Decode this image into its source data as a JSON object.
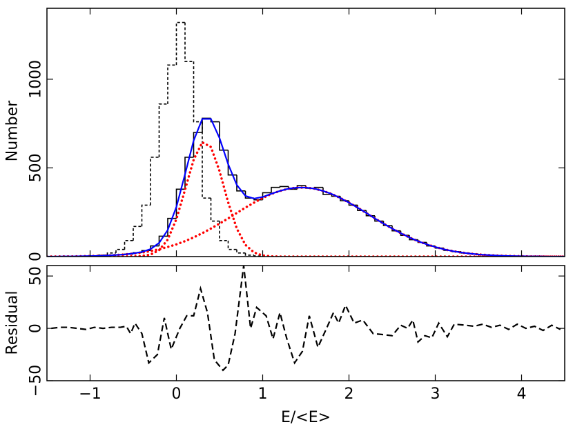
{
  "chart_data": [
    {
      "type": "histogram",
      "ylabel": "Number",
      "xlim": [
        -1.5,
        4.5
      ],
      "ylim": [
        0,
        1400
      ],
      "yticks": [
        {
          "value": 0,
          "label": "0"
        },
        500,
        1000
      ],
      "bins": [
        -1.5,
        -1.4,
        -1.3,
        -1.2,
        -1.1,
        -1.0,
        -0.9,
        -0.8,
        -0.7,
        -0.6,
        -0.5,
        -0.4,
        -0.3,
        -0.2,
        -0.1,
        0,
        0.1,
        0.2,
        0.3,
        0.4,
        0.5,
        0.6,
        0.7,
        0.8,
        0.9,
        1.0,
        1.1,
        1.2,
        1.3,
        1.4,
        1.5,
        1.6,
        1.7,
        1.8,
        1.9,
        2.0,
        2.1,
        2.2,
        2.3,
        2.4,
        2.5,
        2.6,
        2.7,
        2.8,
        2.9,
        3.0,
        3.1,
        3.2,
        3.3,
        3.4,
        3.5,
        3.6,
        3.7,
        3.8,
        3.9,
        4.0,
        4.1,
        4.2,
        4.3,
        4.4,
        4.5
      ],
      "series": [
        {
          "color": "#000000",
          "dash": false,
          "values": [
            0,
            0,
            1,
            1,
            2,
            3,
            5,
            7,
            10,
            14,
            22,
            34,
            60,
            115,
            215,
            380,
            560,
            700,
            780,
            760,
            600,
            460,
            370,
            330,
            320,
            360,
            390,
            395,
            380,
            400,
            385,
            390,
            350,
            340,
            315,
            290,
            260,
            230,
            200,
            175,
            145,
            120,
            95,
            80,
            60,
            48,
            35,
            28,
            20,
            15,
            10,
            7,
            5,
            3,
            2,
            1,
            1,
            0,
            0,
            0
          ]
        },
        {
          "color": "#000000",
          "dash": true,
          "values": [
            0,
            0,
            0,
            0,
            0,
            2,
            8,
            20,
            40,
            90,
            170,
            290,
            560,
            860,
            1080,
            1320,
            1100,
            760,
            330,
            200,
            90,
            40,
            20,
            8,
            3,
            0,
            0,
            0,
            0,
            0,
            0,
            0,
            0,
            0,
            0,
            0,
            0,
            0,
            0,
            0,
            0,
            0,
            0,
            0,
            0,
            0,
            0,
            0,
            0,
            0,
            0,
            0,
            0,
            0,
            0,
            0,
            0,
            0,
            0,
            0
          ]
        }
      ],
      "lines": {
        "x": [
          -1.5,
          -1.4,
          -1.3,
          -1.2,
          -1.1,
          -1.0,
          -0.9,
          -0.8,
          -0.7,
          -0.6,
          -0.5,
          -0.4,
          -0.3,
          -0.2,
          -0.1,
          0,
          0.1,
          0.2,
          0.3,
          0.4,
          0.5,
          0.6,
          0.7,
          0.8,
          0.9,
          1.0,
          1.1,
          1.2,
          1.3,
          1.4,
          1.5,
          1.6,
          1.7,
          1.8,
          1.9,
          2.0,
          2.1,
          2.2,
          2.3,
          2.4,
          2.5,
          2.6,
          2.7,
          2.8,
          2.9,
          3.0,
          3.1,
          3.2,
          3.3,
          3.4,
          3.5,
          3.6,
          3.7,
          3.8,
          3.9,
          4.0,
          4.1,
          4.2,
          4.3,
          4.4,
          4.5
        ],
        "series": [
          {
            "color": "#ff0000",
            "style": "dotted",
            "values": [
              0,
              0,
              0,
              0,
              0,
              0,
              0,
              0,
              0,
              0,
              1,
              3,
              11,
              36,
              96,
              211,
              377,
              546,
              644,
              618,
              482,
              306,
              158,
              66,
              23,
              6,
              1,
              0,
              0,
              0,
              0,
              0,
              0,
              0,
              0,
              0,
              0,
              0,
              0,
              0,
              0,
              0,
              0,
              0,
              0,
              0,
              0,
              0,
              0,
              0,
              0,
              0,
              0,
              0,
              0,
              0,
              0,
              0,
              0,
              0,
              0
            ]
          },
          {
            "color": "#ff0000",
            "style": "dotted",
            "values": [
              0,
              0,
              1,
              1,
              2,
              3,
              4,
              6,
              9,
              12,
              17,
              23,
              31,
              41,
              54,
              69,
              87,
              108,
              132,
              158,
              186,
              215,
              246,
              276,
              304,
              330,
              353,
              370,
              383,
              389,
              389,
              383,
              370,
              353,
              330,
              304,
              276,
              246,
              215,
              186,
              158,
              132,
              108,
              87,
              69,
              54,
              41,
              31,
              23,
              17,
              12,
              9,
              6,
              4,
              3,
              2,
              1,
              1,
              0,
              0,
              0
            ]
          },
          {
            "color": "#0000ff",
            "style": "solid",
            "values": [
              0,
              0,
              1,
              1,
              2,
              3,
              4,
              6,
              9,
              12,
              18,
              26,
              42,
              77,
              150,
              280,
              464,
              654,
              776,
              776,
              668,
              521,
              404,
              342,
              327,
              336,
              354,
              370,
              383,
              389,
              389,
              383,
              370,
              353,
              330,
              304,
              276,
              246,
              215,
              186,
              158,
              132,
              108,
              87,
              69,
              54,
              41,
              31,
              23,
              17,
              12,
              9,
              6,
              4,
              3,
              2,
              1,
              1,
              0,
              0,
              0
            ]
          }
        ]
      }
    },
    {
      "type": "line",
      "xlabel": "E/<E>",
      "ylabel": "Residual",
      "xlim": [
        -1.5,
        4.5
      ],
      "ylim": [
        -50,
        60
      ],
      "xticks": [
        {
          "value": -1,
          "label": "−1"
        },
        0,
        1,
        2,
        3,
        4
      ],
      "yticks": [
        {
          "value": -50,
          "label": "−50"
        },
        0,
        50
      ],
      "x": [
        -1.45,
        -1.35,
        -1.25,
        -1.15,
        -1.05,
        -0.95,
        -0.85,
        -0.75,
        -0.65,
        -0.58,
        -0.53,
        -0.48,
        -0.4,
        -0.32,
        -0.22,
        -0.14,
        -0.06,
        0.04,
        0.12,
        0.2,
        0.28,
        0.36,
        0.44,
        0.54,
        0.6,
        0.68,
        0.78,
        0.86,
        0.93,
        1.04,
        1.12,
        1.2,
        1.28,
        1.37,
        1.46,
        1.54,
        1.64,
        1.74,
        1.82,
        1.88,
        1.96,
        2.06,
        2.16,
        2.28,
        2.4,
        2.5,
        2.6,
        2.68,
        2.74,
        2.8,
        2.88,
        2.96,
        3.04,
        3.14,
        3.22,
        3.35,
        3.45,
        3.55,
        3.65,
        3.75,
        3.85,
        3.95,
        4.05,
        4.15,
        4.25,
        4.35,
        4.45
      ],
      "series": [
        {
          "color": "#000000",
          "dash": true,
          "values": [
            0,
            1,
            1,
            0,
            -1,
            1,
            0,
            1,
            1,
            2,
            -5,
            5,
            -5,
            -33,
            -25,
            10,
            -20,
            0,
            12,
            12,
            38,
            15,
            -30,
            -40,
            -35,
            -5,
            60,
            0,
            20,
            12,
            -10,
            15,
            -10,
            -33,
            -22,
            12,
            -18,
            0,
            15,
            5,
            22,
            5,
            8,
            -5,
            -6,
            -7,
            3,
            0,
            8,
            -13,
            -7,
            -9,
            5,
            -8,
            4,
            3,
            2,
            4,
            1,
            3,
            -1,
            4,
            0,
            2,
            -2,
            3,
            -1
          ]
        }
      ]
    }
  ]
}
